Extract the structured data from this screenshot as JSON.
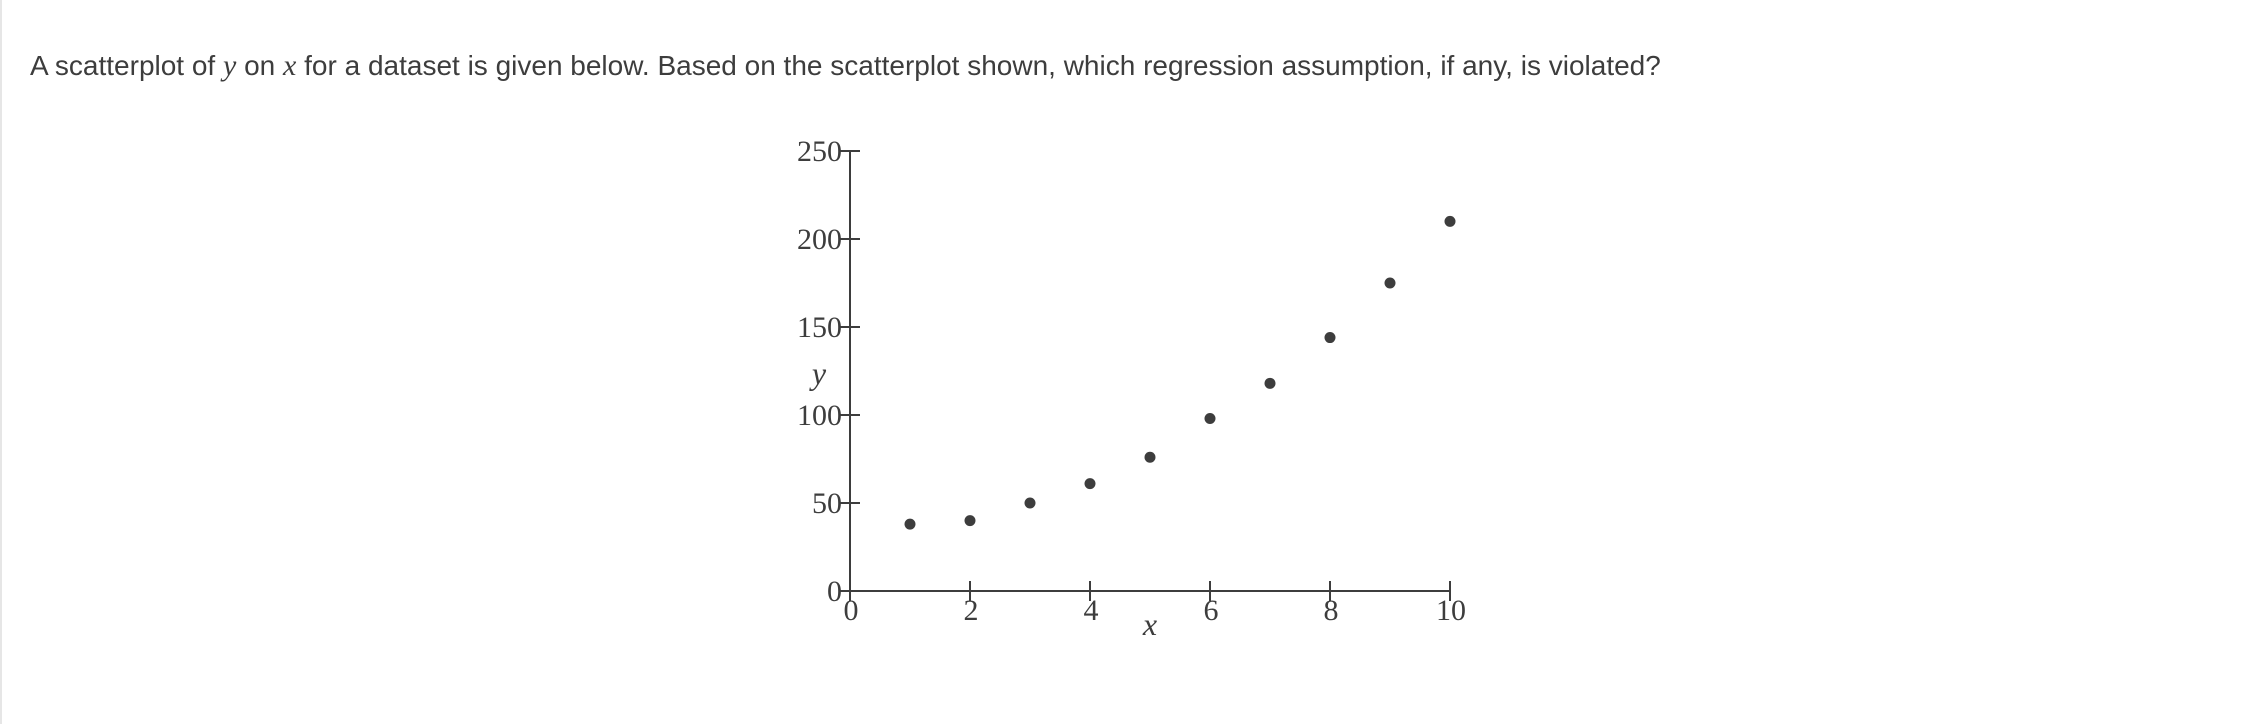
{
  "question": {
    "part1": "A scatterplot of ",
    "var_y": "y",
    "part2": " on ",
    "var_x": "x",
    "part3": " for a dataset is given below. Based on the scatterplot shown, which regression assumption, if any, is violated?"
  },
  "colors": {
    "text": "#3d3d3d",
    "axis": "#3d3d3d",
    "point": "#3d3d3d"
  },
  "chart_data": {
    "type": "scatter",
    "title": "",
    "xlabel": "x",
    "ylabel": "y",
    "xlim": [
      0,
      10
    ],
    "ylim": [
      0,
      250
    ],
    "x_ticks": [
      0,
      2,
      4,
      6,
      8,
      10
    ],
    "y_ticks": [
      0,
      50,
      100,
      150,
      200,
      250
    ],
    "x_tick_labels": [
      "0",
      "2",
      "4",
      "6",
      "8",
      "10"
    ],
    "y_tick_labels": [
      "0",
      "50",
      "100",
      "150",
      "200",
      "250"
    ],
    "grid": false,
    "legend": "none",
    "series": [
      {
        "x": [
          1,
          2,
          3,
          4,
          5,
          6,
          7,
          8,
          9,
          10
        ],
        "y": [
          38,
          40,
          50,
          61,
          76,
          98,
          118,
          144,
          175,
          210
        ]
      }
    ]
  }
}
